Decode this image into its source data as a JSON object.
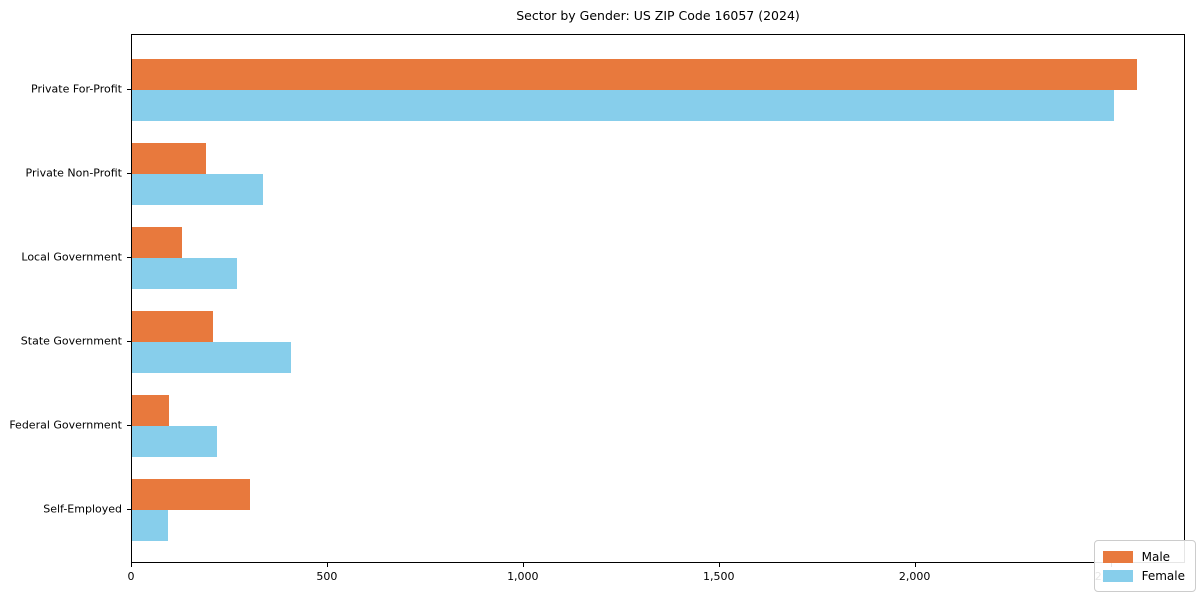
{
  "chart_data": {
    "type": "bar",
    "orientation": "horizontal",
    "title": "Sector by Gender: US ZIP Code 16057 (2024)",
    "categories": [
      "Private For-Profit",
      "Private Non-Profit",
      "Local Government",
      "State Government",
      "Federal Government",
      "Self-Employed"
    ],
    "series": [
      {
        "name": "Male",
        "color": "#e8793d",
        "values": [
          2565,
          190,
          127,
          206,
          95,
          300
        ]
      },
      {
        "name": "Female",
        "color": "#87ceeb",
        "values": [
          2505,
          335,
          268,
          405,
          218,
          93
        ]
      }
    ],
    "xlim": [
      0,
      2690
    ],
    "x_ticks": [
      0,
      500,
      1000,
      1500,
      2000,
      2500
    ],
    "x_tick_labels": [
      "0",
      "500",
      "1,000",
      "1,500",
      "2,000",
      "2,500"
    ],
    "grid": false,
    "legend": {
      "position": "lower right"
    },
    "colors": {
      "axis": "#000000",
      "legend_border": "#cccccc",
      "background": "#ffffff"
    }
  }
}
